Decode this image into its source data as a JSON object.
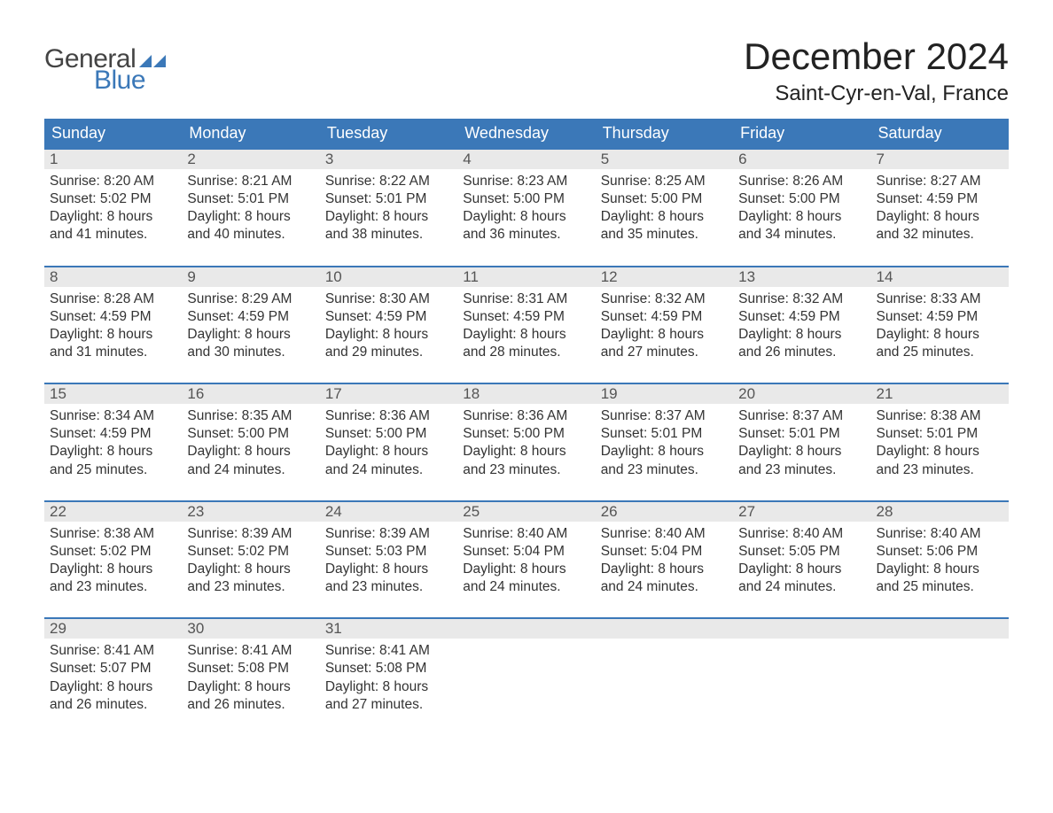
{
  "logo": {
    "text_top": "General",
    "text_bottom": "Blue",
    "flag_color": "#3b78b8",
    "top_color": "#444444",
    "bottom_color": "#3b78b8"
  },
  "header": {
    "month_title": "December 2024",
    "location": "Saint-Cyr-en-Val, France",
    "title_color": "#222222",
    "title_fontsize": 42,
    "location_fontsize": 24
  },
  "calendar": {
    "header_bg": "#3b78b8",
    "header_text_color": "#ffffff",
    "row_divider_color": "#3b78b8",
    "daynum_bg": "#e9e9e9",
    "daynum_color": "#555555",
    "body_text_color": "#333333",
    "day_names": [
      "Sunday",
      "Monday",
      "Tuesday",
      "Wednesday",
      "Thursday",
      "Friday",
      "Saturday"
    ],
    "weeks": [
      [
        {
          "n": "1",
          "sunrise": "8:20 AM",
          "sunset": "5:02 PM",
          "daylight": "8 hours and 41 minutes."
        },
        {
          "n": "2",
          "sunrise": "8:21 AM",
          "sunset": "5:01 PM",
          "daylight": "8 hours and 40 minutes."
        },
        {
          "n": "3",
          "sunrise": "8:22 AM",
          "sunset": "5:01 PM",
          "daylight": "8 hours and 38 minutes."
        },
        {
          "n": "4",
          "sunrise": "8:23 AM",
          "sunset": "5:00 PM",
          "daylight": "8 hours and 36 minutes."
        },
        {
          "n": "5",
          "sunrise": "8:25 AM",
          "sunset": "5:00 PM",
          "daylight": "8 hours and 35 minutes."
        },
        {
          "n": "6",
          "sunrise": "8:26 AM",
          "sunset": "5:00 PM",
          "daylight": "8 hours and 34 minutes."
        },
        {
          "n": "7",
          "sunrise": "8:27 AM",
          "sunset": "4:59 PM",
          "daylight": "8 hours and 32 minutes."
        }
      ],
      [
        {
          "n": "8",
          "sunrise": "8:28 AM",
          "sunset": "4:59 PM",
          "daylight": "8 hours and 31 minutes."
        },
        {
          "n": "9",
          "sunrise": "8:29 AM",
          "sunset": "4:59 PM",
          "daylight": "8 hours and 30 minutes."
        },
        {
          "n": "10",
          "sunrise": "8:30 AM",
          "sunset": "4:59 PM",
          "daylight": "8 hours and 29 minutes."
        },
        {
          "n": "11",
          "sunrise": "8:31 AM",
          "sunset": "4:59 PM",
          "daylight": "8 hours and 28 minutes."
        },
        {
          "n": "12",
          "sunrise": "8:32 AM",
          "sunset": "4:59 PM",
          "daylight": "8 hours and 27 minutes."
        },
        {
          "n": "13",
          "sunrise": "8:32 AM",
          "sunset": "4:59 PM",
          "daylight": "8 hours and 26 minutes."
        },
        {
          "n": "14",
          "sunrise": "8:33 AM",
          "sunset": "4:59 PM",
          "daylight": "8 hours and 25 minutes."
        }
      ],
      [
        {
          "n": "15",
          "sunrise": "8:34 AM",
          "sunset": "4:59 PM",
          "daylight": "8 hours and 25 minutes."
        },
        {
          "n": "16",
          "sunrise": "8:35 AM",
          "sunset": "5:00 PM",
          "daylight": "8 hours and 24 minutes."
        },
        {
          "n": "17",
          "sunrise": "8:36 AM",
          "sunset": "5:00 PM",
          "daylight": "8 hours and 24 minutes."
        },
        {
          "n": "18",
          "sunrise": "8:36 AM",
          "sunset": "5:00 PM",
          "daylight": "8 hours and 23 minutes."
        },
        {
          "n": "19",
          "sunrise": "8:37 AM",
          "sunset": "5:01 PM",
          "daylight": "8 hours and 23 minutes."
        },
        {
          "n": "20",
          "sunrise": "8:37 AM",
          "sunset": "5:01 PM",
          "daylight": "8 hours and 23 minutes."
        },
        {
          "n": "21",
          "sunrise": "8:38 AM",
          "sunset": "5:01 PM",
          "daylight": "8 hours and 23 minutes."
        }
      ],
      [
        {
          "n": "22",
          "sunrise": "8:38 AM",
          "sunset": "5:02 PM",
          "daylight": "8 hours and 23 minutes."
        },
        {
          "n": "23",
          "sunrise": "8:39 AM",
          "sunset": "5:02 PM",
          "daylight": "8 hours and 23 minutes."
        },
        {
          "n": "24",
          "sunrise": "8:39 AM",
          "sunset": "5:03 PM",
          "daylight": "8 hours and 23 minutes."
        },
        {
          "n": "25",
          "sunrise": "8:40 AM",
          "sunset": "5:04 PM",
          "daylight": "8 hours and 24 minutes."
        },
        {
          "n": "26",
          "sunrise": "8:40 AM",
          "sunset": "5:04 PM",
          "daylight": "8 hours and 24 minutes."
        },
        {
          "n": "27",
          "sunrise": "8:40 AM",
          "sunset": "5:05 PM",
          "daylight": "8 hours and 24 minutes."
        },
        {
          "n": "28",
          "sunrise": "8:40 AM",
          "sunset": "5:06 PM",
          "daylight": "8 hours and 25 minutes."
        }
      ],
      [
        {
          "n": "29",
          "sunrise": "8:41 AM",
          "sunset": "5:07 PM",
          "daylight": "8 hours and 26 minutes."
        },
        {
          "n": "30",
          "sunrise": "8:41 AM",
          "sunset": "5:08 PM",
          "daylight": "8 hours and 26 minutes."
        },
        {
          "n": "31",
          "sunrise": "8:41 AM",
          "sunset": "5:08 PM",
          "daylight": "8 hours and 27 minutes."
        },
        {
          "empty": true
        },
        {
          "empty": true
        },
        {
          "empty": true
        },
        {
          "empty": true
        }
      ]
    ],
    "labels": {
      "sunrise_prefix": "Sunrise: ",
      "sunset_prefix": "Sunset: ",
      "daylight_prefix": "Daylight: "
    }
  }
}
